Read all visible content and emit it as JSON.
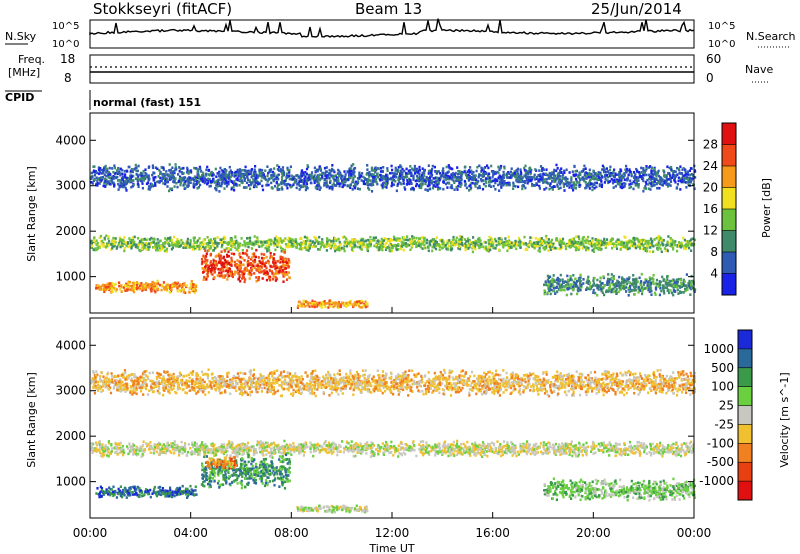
{
  "header": {
    "station": "Stokkseyri (fitACF)",
    "beam": "Beam 13",
    "date": "25/Jun/2014"
  },
  "status_panels": {
    "nsky_label": "N.Sky",
    "nsky_ticks": [
      "10^5",
      "10^0"
    ],
    "nsearch_label": "N.Search",
    "nsearch_ticks": [
      "10^5",
      "10^0"
    ],
    "freq_label": "Freq.",
    "freq_unit": "[MHz]",
    "freq_ticks": [
      "18",
      "8"
    ],
    "nave_label": "Nave",
    "nave_ticks": [
      "60",
      "0"
    ],
    "cpid_label": "CPID",
    "cpid_value": "normal (fast) 151"
  },
  "chart_data": [
    {
      "type": "heatmap",
      "name": "power",
      "ylabel": "Slant Range [km]",
      "xlabel": "",
      "x_range_hours": [
        0,
        24
      ],
      "y_range_km": [
        200,
        4600
      ],
      "y_ticks": [
        "1000",
        "2000",
        "3000",
        "4000"
      ],
      "colorbar_label": "Power [dB]",
      "colorbar_ticks": [
        "4",
        "8",
        "12",
        "16",
        "20",
        "24",
        "28"
      ],
      "colorbar_colors": [
        "#1a22e8",
        "#2f5bb4",
        "#3f8a6a",
        "#6cc23c",
        "#f0e020",
        "#f59a1a",
        "#f04a1a",
        "#e01010"
      ],
      "echo_bands": [
        {
          "t_start": 0.0,
          "t_end": 24.0,
          "r_center": 1750,
          "r_width": 180,
          "level": 3
        },
        {
          "t_start": 0.2,
          "t_end": 4.2,
          "r_center": 800,
          "r_width": 140,
          "level": 5
        },
        {
          "t_start": 4.4,
          "t_end": 7.9,
          "r_center": 1250,
          "r_width": 380,
          "level": 6
        },
        {
          "t_start": 8.2,
          "t_end": 11.0,
          "r_center": 420,
          "r_width": 90,
          "level": 5
        },
        {
          "t_start": 0.0,
          "t_end": 24.0,
          "r_center": 3200,
          "r_width": 300,
          "level": 1
        },
        {
          "t_start": 18.0,
          "t_end": 24.0,
          "r_center": 850,
          "r_width": 250,
          "level": 2
        }
      ]
    },
    {
      "type": "heatmap",
      "name": "velocity",
      "ylabel": "Slant Range [km]",
      "xlabel": "Time UT",
      "x_range_hours": [
        0,
        24
      ],
      "x_ticks": [
        "00:00",
        "04:00",
        "08:00",
        "12:00",
        "16:00",
        "20:00",
        "00:00"
      ],
      "y_range_km": [
        200,
        4600
      ],
      "y_ticks": [
        "1000",
        "2000",
        "3000",
        "4000"
      ],
      "colorbar_label": "Velocity [m s^-1]",
      "colorbar_ticks": [
        "1000",
        "500",
        "100",
        "25",
        "-25",
        "-100",
        "-500",
        "-1000"
      ],
      "colorbar_colors": [
        "#1a2ad8",
        "#2a6a9a",
        "#3a9a4a",
        "#6ad040",
        "#c8c8c0",
        "#f0c030",
        "#f08020",
        "#e84010",
        "#e01010"
      ],
      "echo_bands": [
        {
          "t_start": 0.0,
          "t_end": 24.0,
          "r_center": 1750,
          "r_width": 180,
          "level": 4
        },
        {
          "t_start": 0.2,
          "t_end": 4.2,
          "r_center": 800,
          "r_width": 140,
          "level": 1
        },
        {
          "t_start": 4.4,
          "t_end": 7.9,
          "r_center": 1250,
          "r_width": 380,
          "level": 2
        },
        {
          "t_start": 4.6,
          "t_end": 5.8,
          "r_center": 1450,
          "r_width": 160,
          "level": 6
        },
        {
          "t_start": 8.2,
          "t_end": 11.0,
          "r_center": 420,
          "r_width": 90,
          "level": 4
        },
        {
          "t_start": 0.0,
          "t_end": 24.0,
          "r_center": 3200,
          "r_width": 300,
          "level": 5
        },
        {
          "t_start": 18.0,
          "t_end": 24.0,
          "r_center": 850,
          "r_width": 250,
          "level": 3
        }
      ]
    }
  ]
}
